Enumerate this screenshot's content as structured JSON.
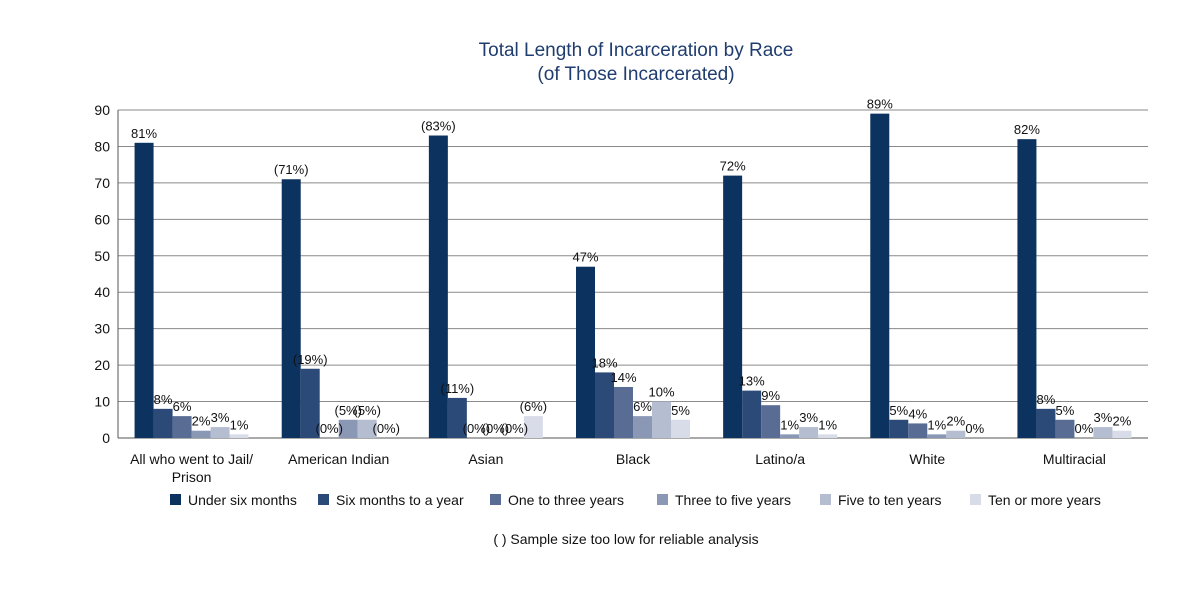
{
  "chart_data": {
    "type": "bar",
    "title_lines": [
      "Total Length of Incarceration by Race",
      "(of Those Incarcerated)"
    ],
    "xlabel": "",
    "ylabel": "",
    "ylim": [
      0,
      90
    ],
    "yticks": [
      0,
      10,
      20,
      30,
      40,
      50,
      60,
      70,
      80,
      90
    ],
    "grid": true,
    "legend_position": "bottom",
    "categories": [
      [
        "All who went to Jail/",
        "Prison"
      ],
      [
        "American Indian"
      ],
      [
        "Asian"
      ],
      [
        "Black"
      ],
      [
        "Latino/a"
      ],
      [
        "White"
      ],
      [
        "Multiracial"
      ]
    ],
    "series": [
      {
        "name": "Under six months",
        "color": "#0c335f",
        "values": [
          81,
          71,
          83,
          47,
          72,
          89,
          82
        ],
        "labels": [
          "81%",
          "(71%)",
          "(83%)",
          "47%",
          "72%",
          "89%",
          "82%"
        ]
      },
      {
        "name": "Six months to a year",
        "color": "#2c4a78",
        "values": [
          8,
          19,
          11,
          18,
          13,
          5,
          8
        ],
        "labels": [
          "8%",
          "(19%)",
          "(11%)",
          "18%",
          "13%",
          "5%",
          "8%"
        ]
      },
      {
        "name": "One to three years",
        "color": "#586c94",
        "values": [
          6,
          0,
          0,
          14,
          9,
          4,
          5
        ],
        "labels": [
          "6%",
          "(0%)",
          "(0%)",
          "14%",
          "9%",
          "4%",
          "5%"
        ]
      },
      {
        "name": "Three to five years",
        "color": "#8a97b5",
        "values": [
          2,
          5,
          0,
          6,
          1,
          1,
          0
        ],
        "labels": [
          "2%",
          "(5%)",
          "(0%)",
          "6%",
          "1%",
          "1%",
          "0%"
        ]
      },
      {
        "name": "Five to ten years",
        "color": "#b5bdd1",
        "values": [
          3,
          5,
          0,
          10,
          3,
          2,
          3
        ],
        "labels": [
          "3%",
          "(5%)",
          "(0%)",
          "10%",
          "3%",
          "2%",
          "3%"
        ]
      },
      {
        "name": "Ten or more years",
        "color": "#d8dce8",
        "values": [
          1,
          0,
          6,
          5,
          1,
          0,
          2
        ],
        "labels": [
          "1%",
          "(0%)",
          "(6%)",
          "5%",
          "1%",
          "0%",
          "2%"
        ]
      }
    ],
    "footnote": "( ) Sample size too low for reliable analysis"
  }
}
